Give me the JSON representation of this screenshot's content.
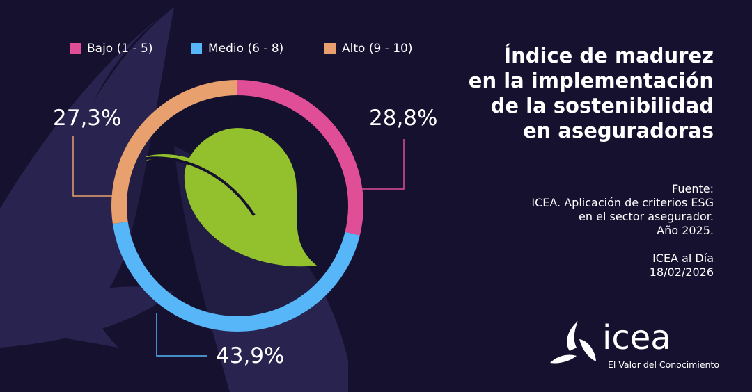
{
  "chart_data": {
    "type": "pie",
    "donut": true,
    "categories": [
      "Bajo (1 - 5)",
      "Medio (6 - 8)",
      "Alto (9 - 10)"
    ],
    "values": [
      28.8,
      43.9,
      27.3
    ],
    "labels": [
      "28,8%",
      "43,9%",
      "27,3%"
    ],
    "colors": [
      "#e04e98",
      "#56b6f8",
      "#e8a06e"
    ],
    "legend": "top",
    "title": "Índice de madurez en la implementación de la sostenibilidad en aseguradoras"
  },
  "title_lines": [
    "Índice de madurez",
    "en la implementación",
    "de la sostenibilidad",
    "en aseguradoras"
  ],
  "source_lines": [
    "Fuente:",
    "ICEA. Aplicación de criterios ESG",
    "en el sector asegurador.",
    "Año 2025."
  ],
  "publication_lines": [
    "ICEA al Día",
    "18/02/2026"
  ],
  "logo": {
    "name": "icea",
    "tagline": "El Valor del Conocimiento"
  },
  "center_icon": "leaf-icon",
  "colors": {
    "background": "#15112f",
    "leaf": "#93c02d",
    "shapes": "#28244f"
  }
}
